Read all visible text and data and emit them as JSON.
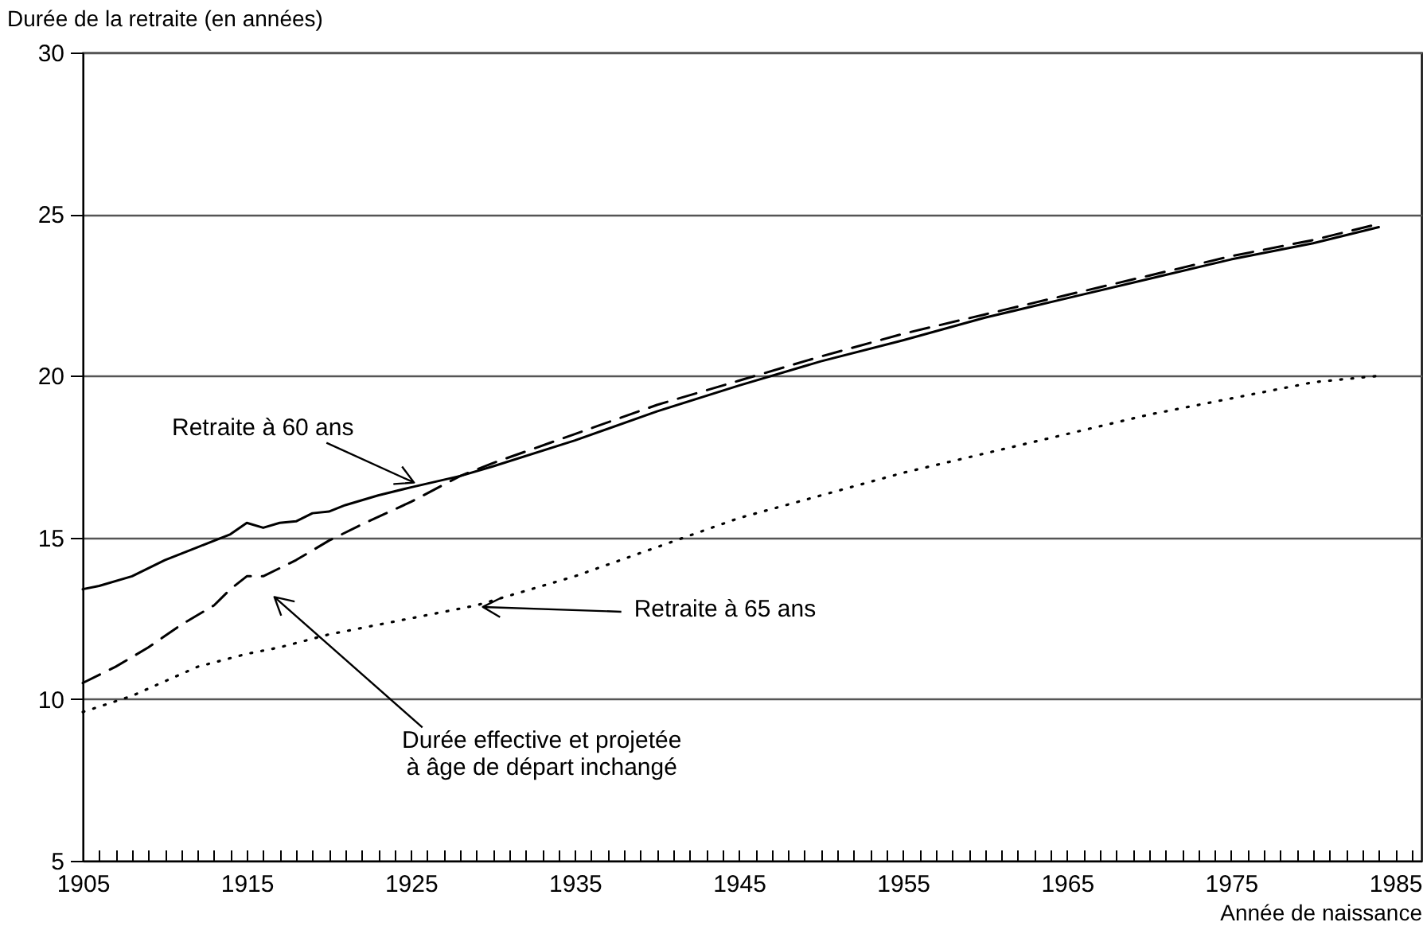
{
  "chart_data": {
    "type": "line",
    "ylabel": "Durée de la retraite (en années)",
    "xlabel": "Année de naissance",
    "xlim": [
      1905,
      1986.6
    ],
    "ylim": [
      5,
      30
    ],
    "yticks": [
      5,
      10,
      15,
      20,
      25,
      30
    ],
    "xticks": [
      1905,
      {
        "value": 1906,
        "label": null
      },
      {
        "value": 1907,
        "label": null
      },
      {
        "value": 1908,
        "label": null
      },
      {
        "value": 1909,
        "label": null
      },
      {
        "value": 1910,
        "label": null
      },
      {
        "value": 1911,
        "label": null
      },
      {
        "value": 1912,
        "label": null
      },
      {
        "value": 1913,
        "label": null
      },
      {
        "value": 1914,
        "label": null
      },
      1915,
      {
        "value": 1916,
        "label": null
      },
      {
        "value": 1917,
        "label": null
      },
      {
        "value": 1918,
        "label": null
      },
      {
        "value": 1919,
        "label": null
      },
      {
        "value": 1920,
        "label": null
      },
      {
        "value": 1921,
        "label": null
      },
      {
        "value": 1922,
        "label": null
      },
      {
        "value": 1923,
        "label": null
      },
      {
        "value": 1924,
        "label": null
      },
      1925,
      {
        "value": 1926,
        "label": null
      },
      {
        "value": 1927,
        "label": null
      },
      {
        "value": 1928,
        "label": null
      },
      {
        "value": 1929,
        "label": null
      },
      {
        "value": 1930,
        "label": null
      },
      {
        "value": 1931,
        "label": null
      },
      {
        "value": 1932,
        "label": null
      },
      {
        "value": 1933,
        "label": null
      },
      {
        "value": 1934,
        "label": null
      },
      1935,
      {
        "value": 1936,
        "label": null
      },
      {
        "value": 1937,
        "label": null
      },
      {
        "value": 1938,
        "label": null
      },
      {
        "value": 1939,
        "label": null
      },
      {
        "value": 1940,
        "label": null
      },
      {
        "value": 1941,
        "label": null
      },
      {
        "value": 1942,
        "label": null
      },
      {
        "value": 1943,
        "label": null
      },
      {
        "value": 1944,
        "label": null
      },
      1945,
      {
        "value": 1946,
        "label": null
      },
      {
        "value": 1947,
        "label": null
      },
      {
        "value": 1948,
        "label": null
      },
      {
        "value": 1949,
        "label": null
      },
      {
        "value": 1950,
        "label": null
      },
      {
        "value": 1951,
        "label": null
      },
      {
        "value": 1952,
        "label": null
      },
      {
        "value": 1953,
        "label": null
      },
      {
        "value": 1954,
        "label": null
      },
      1955,
      {
        "value": 1956,
        "label": null
      },
      {
        "value": 1957,
        "label": null
      },
      {
        "value": 1958,
        "label": null
      },
      {
        "value": 1959,
        "label": null
      },
      {
        "value": 1960,
        "label": null
      },
      {
        "value": 1961,
        "label": null
      },
      {
        "value": 1962,
        "label": null
      },
      {
        "value": 1963,
        "label": null
      },
      {
        "value": 1964,
        "label": null
      },
      1965,
      {
        "value": 1966,
        "label": null
      },
      {
        "value": 1967,
        "label": null
      },
      {
        "value": 1968,
        "label": null
      },
      {
        "value": 1969,
        "label": null
      },
      {
        "value": 1970,
        "label": null
      },
      {
        "value": 1971,
        "label": null
      },
      {
        "value": 1972,
        "label": null
      },
      {
        "value": 1973,
        "label": null
      },
      {
        "value": 1974,
        "label": null
      },
      1975,
      {
        "value": 1976,
        "label": null
      },
      {
        "value": 1977,
        "label": null
      },
      {
        "value": 1978,
        "label": null
      },
      {
        "value": 1979,
        "label": null
      },
      {
        "value": 1980,
        "label": null
      },
      {
        "value": 1981,
        "label": null
      },
      {
        "value": 1982,
        "label": null
      },
      {
        "value": 1983,
        "label": null
      },
      {
        "value": 1984,
        "label": null
      },
      1985,
      {
        "value": 1986,
        "label": null
      }
    ],
    "grid": "y",
    "series": [
      {
        "name": "Retraite à 60 ans",
        "color": "#000000",
        "line_style": "solid",
        "x": [
          1905,
          1906,
          1908,
          1910,
          1912,
          1914,
          1915,
          1916,
          1917,
          1918,
          1919,
          1920,
          1921,
          1923,
          1925,
          1928,
          1930,
          1935,
          1940,
          1945,
          1950,
          1955,
          1960,
          1965,
          1970,
          1975,
          1980,
          1984
        ],
        "values": [
          13.4,
          13.5,
          13.8,
          14.3,
          14.7,
          15.1,
          15.45,
          15.3,
          15.45,
          15.5,
          15.75,
          15.8,
          16.0,
          16.3,
          16.55,
          16.9,
          17.2,
          18.0,
          18.9,
          19.7,
          20.45,
          21.1,
          21.8,
          22.4,
          23.0,
          23.6,
          24.1,
          24.6
        ]
      },
      {
        "name": "Durée effective et projetée à âge de départ inchangé",
        "color": "#000000",
        "line_style": "dashed",
        "x": [
          1905,
          1907,
          1909,
          1911,
          1913,
          1914,
          1915,
          1916,
          1918,
          1920,
          1922,
          1925,
          1928,
          1930,
          1935,
          1940,
          1945,
          1950,
          1955,
          1960,
          1965,
          1970,
          1975,
          1980,
          1984
        ],
        "values": [
          10.5,
          11.0,
          11.6,
          12.3,
          12.9,
          13.4,
          13.8,
          13.8,
          14.3,
          14.9,
          15.4,
          16.1,
          16.9,
          17.3,
          18.2,
          19.1,
          19.85,
          20.6,
          21.3,
          21.9,
          22.5,
          23.1,
          23.7,
          24.2,
          24.7
        ]
      },
      {
        "name": "Retraite à 65 ans",
        "color": "#000000",
        "line_style": "dotted",
        "x": [
          1905,
          1908,
          1912,
          1915,
          1917,
          1920,
          1925,
          1929,
          1935,
          1940,
          1945,
          1950,
          1955,
          1960,
          1965,
          1970,
          1975,
          1980,
          1984
        ],
        "values": [
          9.6,
          10.1,
          11.0,
          11.4,
          11.6,
          12.0,
          12.5,
          12.9,
          13.8,
          14.7,
          15.6,
          16.3,
          17.0,
          17.6,
          18.2,
          18.8,
          19.3,
          19.8,
          20.0
        ]
      }
    ]
  }
}
